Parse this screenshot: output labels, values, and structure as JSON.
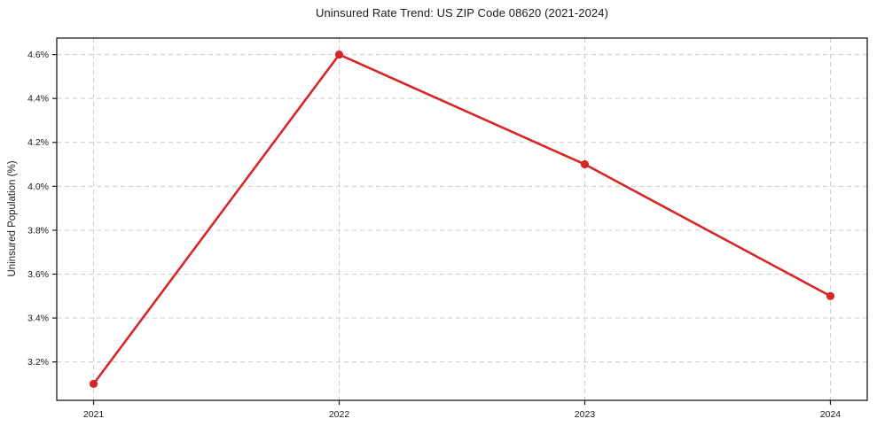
{
  "chart_data": {
    "type": "line",
    "title": "Uninsured Rate Trend: US ZIP Code 08620 (2021-2024)",
    "xlabel": "",
    "ylabel": "Uninsured Population (%)",
    "x": [
      2021,
      2022,
      2023,
      2024
    ],
    "values": [
      3.1,
      4.6,
      4.1,
      3.5
    ],
    "xlim": [
      2020.85,
      2024.15
    ],
    "ylim": [
      3.025,
      4.675
    ],
    "xticks": [
      2021,
      2022,
      2023,
      2024
    ],
    "xtick_labels": [
      "2021",
      "2022",
      "2023",
      "2024"
    ],
    "yticks": [
      3.2,
      3.4,
      3.6,
      3.8,
      4.0,
      4.2,
      4.4,
      4.6
    ],
    "ytick_labels": [
      "3.2%",
      "3.4%",
      "3.6%",
      "3.8%",
      "4.0%",
      "4.2%",
      "4.4%",
      "4.6%"
    ],
    "grid": true,
    "legend": false,
    "colors": {
      "line": "#d62728",
      "marker": "#d62728",
      "grid": "#cccccc",
      "axis": "#1a1a1a",
      "background": "#ffffff",
      "text": "#1a1a1a"
    }
  }
}
